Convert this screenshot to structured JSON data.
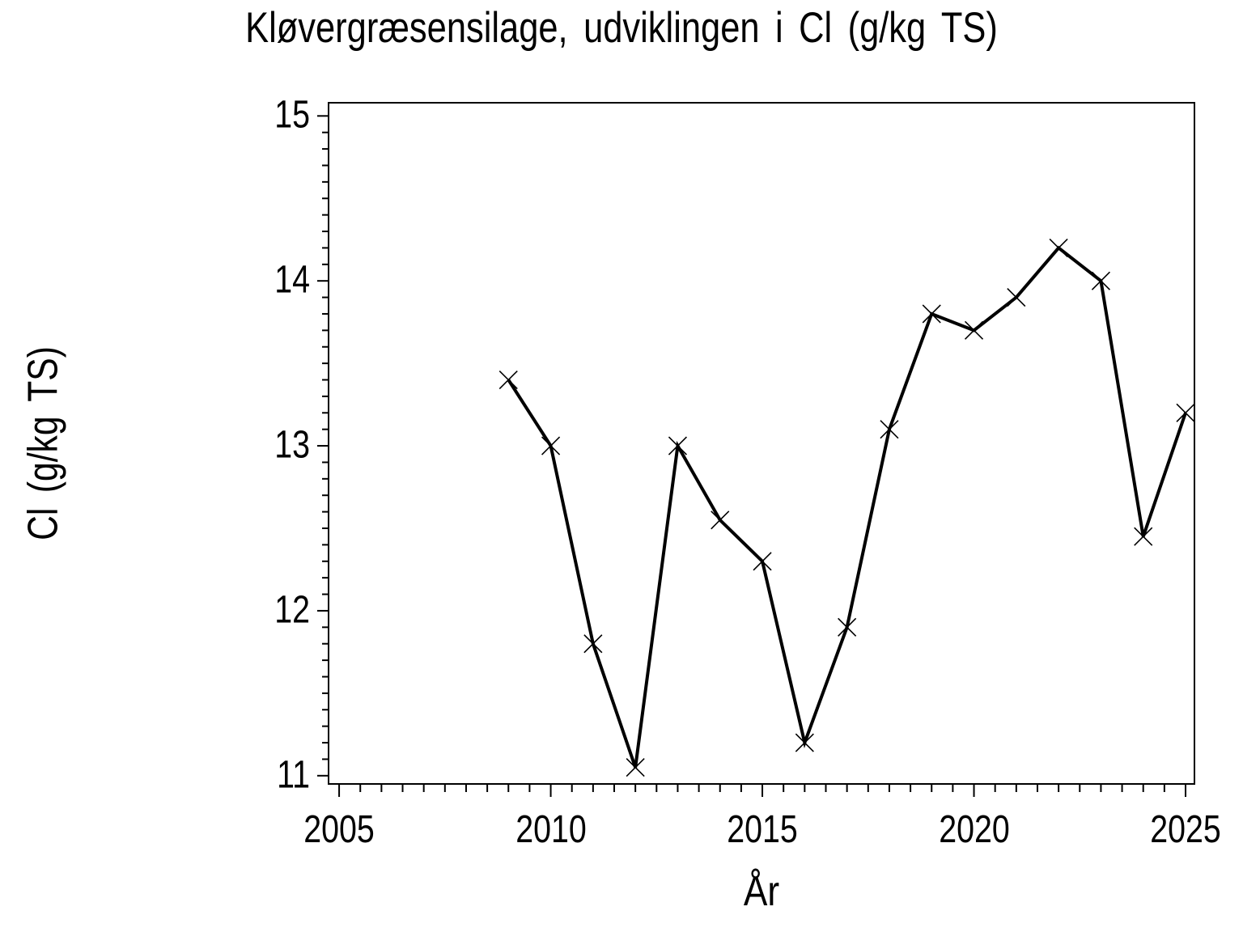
{
  "page": {
    "background": "#ffffff",
    "foreground": "#000000"
  },
  "chart_data": {
    "type": "line",
    "title": "Kløvergræsensilage, udviklingen i Cl (g/kg TS)",
    "xlabel": "År",
    "ylabel": "Cl (g/kg TS)",
    "series": [
      {
        "name": "Cl (g/kg TS)",
        "marker": "x-cross",
        "color": "#000000",
        "x": [
          2009,
          2010,
          2011,
          2012,
          2013,
          2014,
          2015,
          2016,
          2017,
          2018,
          2019,
          2020,
          2021,
          2022,
          2023,
          2024,
          2025
        ],
        "y": [
          13.4,
          13.0,
          11.8,
          11.05,
          13.0,
          12.55,
          12.3,
          11.2,
          11.9,
          13.1,
          13.8,
          13.7,
          13.9,
          14.2,
          14.0,
          12.45,
          13.2
        ]
      }
    ],
    "xlim": [
      2004.75,
      2025.21
    ],
    "ylim": [
      10.95,
      15.08
    ],
    "x_major_ticks": [
      2005,
      2010,
      2015,
      2020,
      2025
    ],
    "x_minor_step": 0.5,
    "y_major_ticks": [
      11,
      12,
      13,
      14,
      15
    ],
    "y_minor_step": 0.1,
    "grid": false,
    "legend": "none"
  }
}
